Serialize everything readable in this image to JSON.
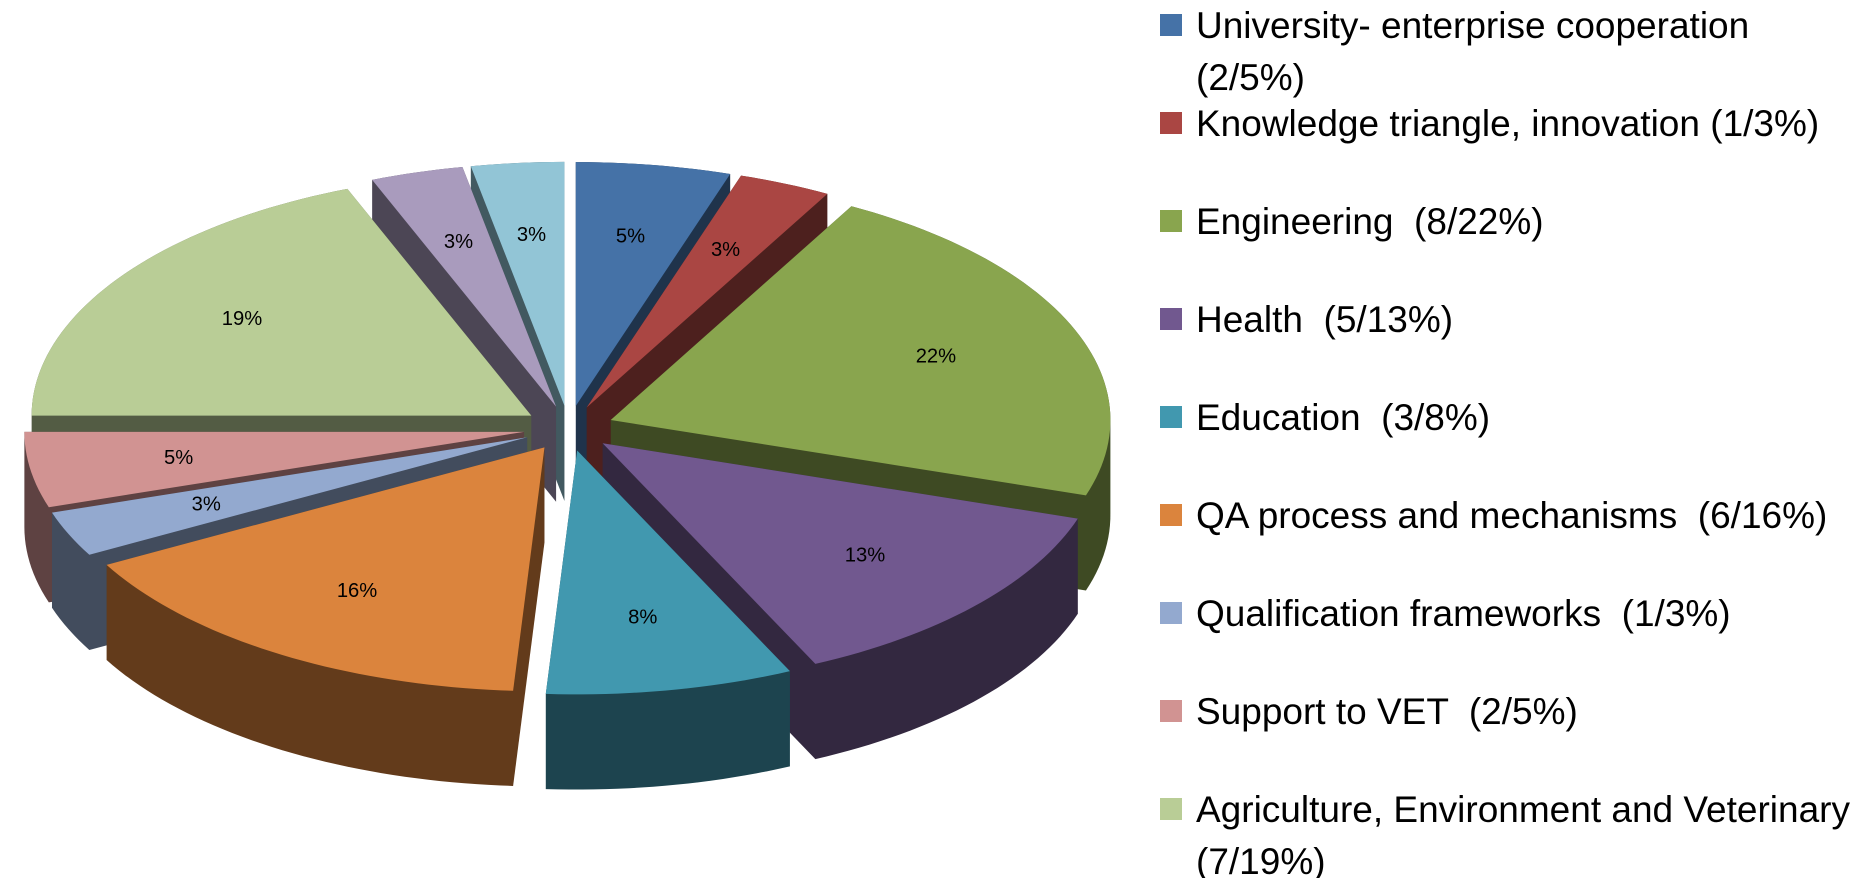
{
  "chart_data": {
    "type": "pie",
    "categories": [
      "University- enterprise cooperation (2/5%)",
      "Knowledge triangle, innovation (1/3%)",
      "Engineering  (8/22%)",
      "Health  (5/13%)",
      "Education  (3/8%)",
      "QA process and mechanisms  (6/16%)",
      "Qualification frameworks  (1/3%)",
      "Support to VET  (2/5%)",
      "Agriculture, Environment and Veterinary  (7/19%)",
      null,
      null
    ],
    "values": [
      5,
      3,
      22,
      13,
      8,
      16,
      3,
      5,
      19,
      3,
      3
    ],
    "value_labels": [
      "5%",
      "3%",
      "22%",
      "13%",
      "8%",
      "16%",
      "3%",
      "5%",
      "19%",
      "3%",
      "3%"
    ],
    "colors": [
      "#4572a7",
      "#aa4643",
      "#89a54e",
      "#71588f",
      "#4198af",
      "#db843d",
      "#93a9cf",
      "#d19392",
      "#b9cd96",
      "#a99bbd",
      "#92c5d6"
    ]
  }
}
